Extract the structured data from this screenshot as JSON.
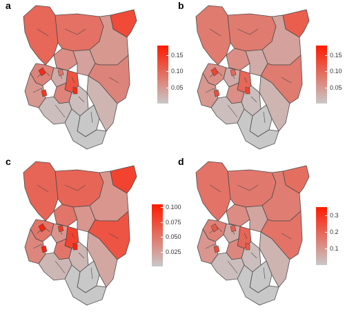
{
  "colors": {
    "low": "#c8c8c8",
    "high": "#ff1a00",
    "border": "#4a4a4a"
  },
  "panels": [
    {
      "label": "a",
      "legend": {
        "max": 0.18,
        "ticks": [
          {
            "value": 0.15,
            "label": "0.15"
          },
          {
            "value": 0.1,
            "label": "0.10"
          },
          {
            "value": 0.05,
            "label": "0.05"
          }
        ]
      },
      "region_values": [
        0.1,
        0.09,
        0.06,
        0.04,
        0.05,
        0.13,
        0.07,
        0.02,
        0.07,
        0.03,
        0.12,
        0.07,
        0.05,
        0.01,
        0.01,
        0.0,
        0.0
      ]
    },
    {
      "label": "b",
      "legend": {
        "max": 0.18,
        "ticks": [
          {
            "value": 0.15,
            "label": "0.15"
          },
          {
            "value": 0.1,
            "label": "0.10"
          },
          {
            "value": 0.05,
            "label": "0.05"
          }
        ]
      },
      "region_values": [
        0.08,
        0.08,
        0.06,
        0.03,
        0.04,
        0.11,
        0.08,
        0.02,
        0.06,
        0.03,
        0.1,
        0.06,
        0.05,
        0.01,
        0.01,
        0.0,
        0.0
      ]
    },
    {
      "label": "c",
      "legend": {
        "max": 0.105,
        "ticks": [
          {
            "value": 0.1,
            "label": "0.100"
          },
          {
            "value": 0.075,
            "label": "0.075"
          },
          {
            "value": 0.05,
            "label": "0.050"
          },
          {
            "value": 0.025,
            "label": "0.025"
          }
        ]
      },
      "region_values": [
        0.06,
        0.06,
        0.05,
        0.03,
        0.03,
        0.08,
        0.07,
        0.02,
        0.05,
        0.03,
        0.08,
        0.05,
        0.04,
        0.01,
        0.01,
        0.0,
        0.0
      ]
    },
    {
      "label": "d",
      "legend": {
        "max": 0.35,
        "ticks": [
          {
            "value": 0.3,
            "label": "0.3"
          },
          {
            "value": 0.2,
            "label": "0.2"
          },
          {
            "value": 0.1,
            "label": "0.1"
          }
        ]
      },
      "region_values": [
        0.17,
        0.16,
        0.12,
        0.07,
        0.15,
        0.18,
        0.17,
        0.04,
        0.14,
        0.06,
        0.2,
        0.13,
        0.1,
        0.02,
        0.02,
        0.0,
        0.0
      ]
    }
  ]
}
